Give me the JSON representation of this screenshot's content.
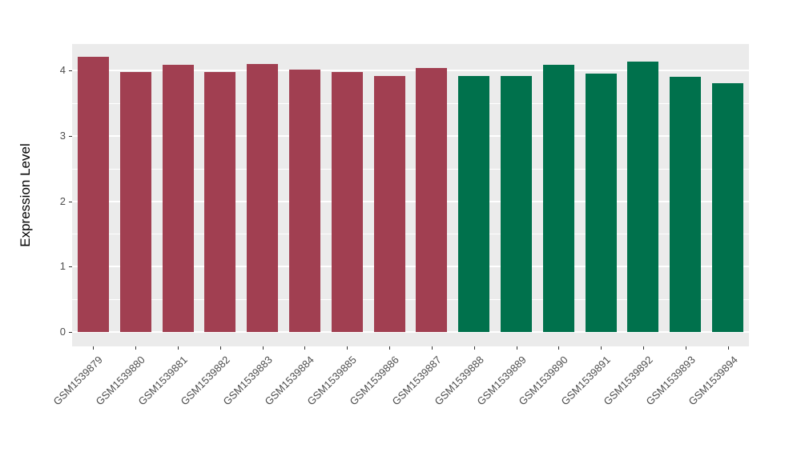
{
  "chart_data": {
    "type": "bar",
    "title": "",
    "xlabel": "",
    "ylabel": "Expression Level",
    "categories": [
      "GSM1539879",
      "GSM1539880",
      "GSM1539881",
      "GSM1539882",
      "GSM1539883",
      "GSM1539884",
      "GSM1539885",
      "GSM1539886",
      "GSM1539887",
      "GSM1539888",
      "GSM1539889",
      "GSM1539890",
      "GSM1539891",
      "GSM1539892",
      "GSM1539893",
      "GSM1539894"
    ],
    "values": [
      4.21,
      3.97,
      4.09,
      3.97,
      4.1,
      4.01,
      3.97,
      3.91,
      4.04,
      3.91,
      3.92,
      4.09,
      3.95,
      4.14,
      3.9,
      3.81
    ],
    "bar_colors": [
      "#A13F51",
      "#A13F51",
      "#A13F51",
      "#A13F51",
      "#A13F51",
      "#A13F51",
      "#A13F51",
      "#A13F51",
      "#A13F51",
      "#00714C",
      "#00714C",
      "#00714C",
      "#00714C",
      "#00714C",
      "#00714C",
      "#00714C"
    ],
    "groups": [
      {
        "color": "#A13F51",
        "first": "GSM1539879",
        "last": "GSM1539887"
      },
      {
        "color": "#00714C",
        "first": "GSM1539888",
        "last": "GSM1539894"
      }
    ],
    "yticks": [
      0,
      1,
      2,
      3,
      4
    ],
    "minor_yticks": [
      0.5,
      1.5,
      2.5,
      3.5
    ],
    "ylim": [
      0,
      4.4
    ],
    "grid": true,
    "legend_position": "none",
    "panel_background": "#EBEBEB",
    "grid_color": "#FFFFFF"
  }
}
